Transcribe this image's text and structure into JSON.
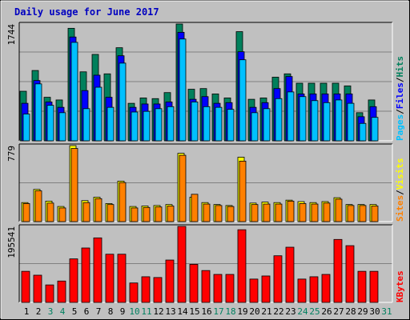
{
  "chart_data": [
    {
      "type": "bar",
      "title": "Daily usage for June 2017",
      "ylabel": [
        "Pages",
        "Files",
        "Hits"
      ],
      "ymax_label": "1744",
      "ylim": [
        0,
        1744
      ],
      "categories": [
        "1",
        "2",
        "3",
        "4",
        "5",
        "6",
        "7",
        "8",
        "9",
        "10",
        "11",
        "12",
        "13",
        "14",
        "15",
        "16",
        "17",
        "18",
        "19",
        "20",
        "21",
        "22",
        "23",
        "24",
        "25",
        "26",
        "27",
        "28",
        "29",
        "30",
        "31"
      ],
      "series": [
        {
          "name": "Hits",
          "color": "#00805c",
          "values": [
            740,
            1050,
            650,
            610,
            1680,
            1030,
            1290,
            1000,
            1390,
            560,
            640,
            630,
            720,
            1744,
            770,
            780,
            700,
            640,
            1630,
            620,
            640,
            950,
            1000,
            860,
            860,
            860,
            860,
            820,
            420,
            610,
            0
          ]
        },
        {
          "name": "Files",
          "color": "#0000ff",
          "values": [
            560,
            900,
            580,
            500,
            1550,
            750,
            980,
            650,
            1270,
            500,
            550,
            550,
            580,
            1620,
            620,
            660,
            560,
            570,
            1330,
            500,
            570,
            780,
            960,
            700,
            700,
            700,
            700,
            700,
            360,
            510,
            0
          ]
        },
        {
          "name": "Pages",
          "color": "#00c0ff",
          "values": [
            400,
            850,
            530,
            420,
            1470,
            480,
            800,
            500,
            1160,
            430,
            440,
            480,
            510,
            1520,
            580,
            510,
            500,
            470,
            1210,
            420,
            480,
            630,
            730,
            660,
            600,
            570,
            610,
            560,
            260,
            350,
            0
          ]
        }
      ]
    },
    {
      "type": "bar",
      "ylabel": [
        "Sites",
        "Visits"
      ],
      "ymax_label": "779",
      "ylim": [
        0,
        779
      ],
      "categories": [
        "1",
        "2",
        "3",
        "4",
        "5",
        "6",
        "7",
        "8",
        "9",
        "10",
        "11",
        "12",
        "13",
        "14",
        "15",
        "16",
        "17",
        "18",
        "19",
        "20",
        "21",
        "22",
        "23",
        "24",
        "25",
        "26",
        "27",
        "28",
        "29",
        "30",
        "31"
      ],
      "series": [
        {
          "name": "Visits",
          "color": "#ffff00",
          "values": [
            195,
            330,
            210,
            155,
            779,
            215,
            250,
            185,
            415,
            155,
            160,
            165,
            175,
            700,
            250,
            195,
            175,
            165,
            660,
            190,
            200,
            195,
            220,
            205,
            195,
            205,
            245,
            175,
            175,
            175,
            0
          ]
        },
        {
          "name": "Sites",
          "color": "#ff8000",
          "values": [
            185,
            315,
            190,
            140,
            750,
            195,
            235,
            175,
            400,
            140,
            145,
            150,
            160,
            680,
            280,
            180,
            165,
            155,
            620,
            175,
            180,
            180,
            210,
            185,
            180,
            190,
            230,
            165,
            165,
            160,
            0
          ]
        }
      ]
    },
    {
      "type": "bar",
      "ylabel": [
        "KBytes"
      ],
      "ymax_label": "195541",
      "ylim": [
        0,
        195541
      ],
      "categories": [
        "1",
        "2",
        "3",
        "4",
        "5",
        "6",
        "7",
        "8",
        "9",
        "10",
        "11",
        "12",
        "13",
        "14",
        "15",
        "16",
        "17",
        "18",
        "19",
        "20",
        "21",
        "22",
        "23",
        "24",
        "25",
        "26",
        "27",
        "28",
        "29",
        "30",
        "31"
      ],
      "series": [
        {
          "name": "KBytes",
          "color": "#ff0000",
          "values": [
            80000,
            70000,
            45000,
            55000,
            112000,
            140000,
            166000,
            124000,
            124000,
            50000,
            66000,
            64000,
            109000,
            195541,
            98000,
            82000,
            72000,
            72000,
            187000,
            60000,
            68000,
            120000,
            142000,
            60000,
            66000,
            72000,
            162000,
            146000,
            80000,
            80000,
            0
          ]
        }
      ]
    }
  ],
  "x_label_colors": [
    "#000000",
    "#000000",
    "#008060",
    "#008060",
    "#000000",
    "#000000",
    "#000000",
    "#000000",
    "#000000",
    "#008060",
    "#008060",
    "#000000",
    "#000000",
    "#000000",
    "#000000",
    "#000000",
    "#008060",
    "#008060",
    "#000000",
    "#000000",
    "#000000",
    "#000000",
    "#000000",
    "#008060",
    "#008060",
    "#000000",
    "#000000",
    "#000000",
    "#000000",
    "#000000",
    "#008060"
  ]
}
